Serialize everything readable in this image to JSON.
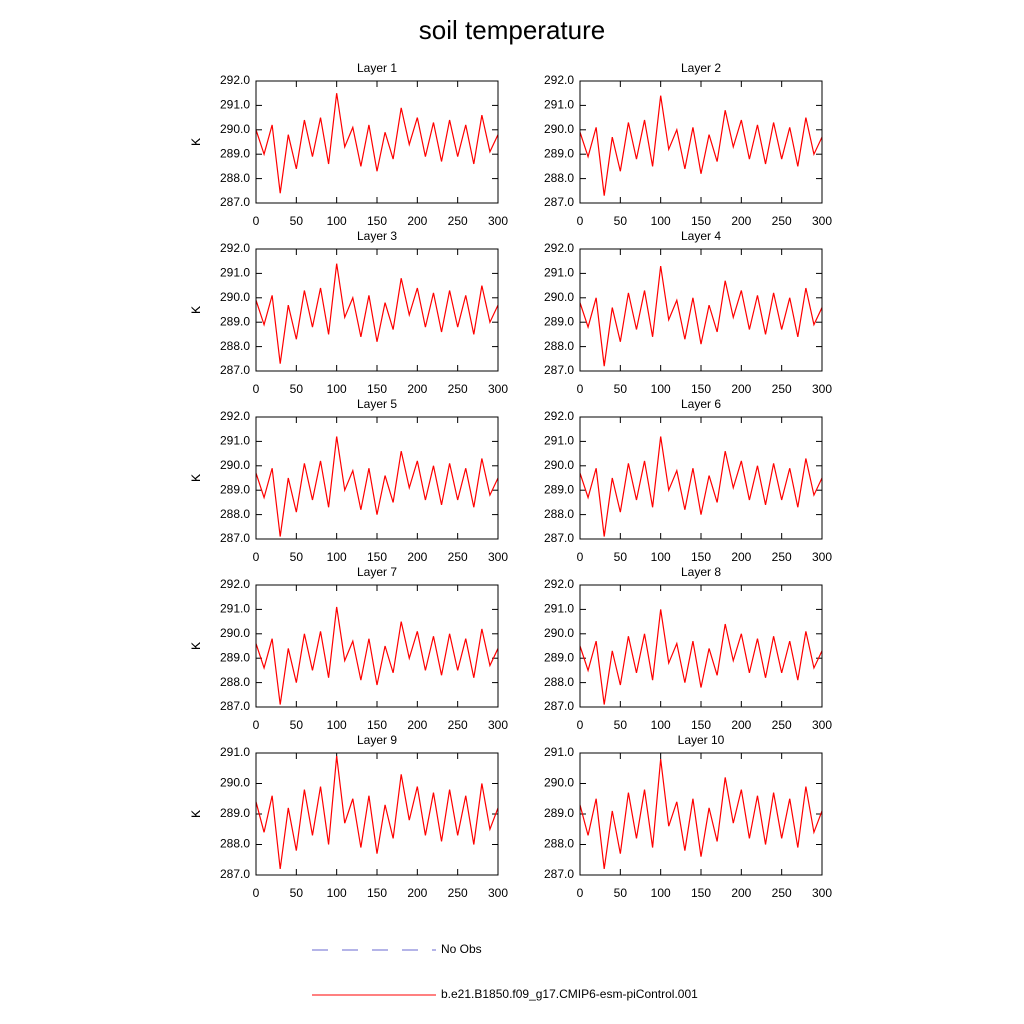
{
  "title": "soil temperature",
  "legend": [
    {
      "name": "No Obs",
      "color": "#6a6ad0",
      "style": "dashed"
    },
    {
      "name": "b.e21.B1850.f09_g17.CMIP6-esm-piControl.001",
      "color": "#ff0000",
      "style": "solid"
    }
  ],
  "chart_data": [
    {
      "type": "line",
      "title": "Layer 1",
      "ylabel": "K",
      "x": [
        0,
        10,
        20,
        30,
        40,
        50,
        60,
        70,
        80,
        90,
        100,
        110,
        120,
        130,
        140,
        150,
        160,
        170,
        180,
        190,
        200,
        210,
        220,
        230,
        240,
        250,
        260,
        270,
        280,
        290,
        300
      ],
      "series": [
        {
          "color": "#ff0000",
          "values": [
            290.0,
            289.0,
            290.2,
            287.4,
            289.8,
            288.4,
            290.4,
            288.9,
            290.5,
            288.6,
            291.5,
            289.3,
            290.1,
            288.5,
            290.2,
            288.3,
            289.9,
            288.8,
            290.9,
            289.4,
            290.5,
            288.9,
            290.3,
            288.7,
            290.4,
            288.9,
            290.2,
            288.6,
            290.6,
            289.1,
            289.8
          ]
        }
      ],
      "xlim": [
        0,
        300
      ],
      "xticks": [
        0,
        50,
        100,
        150,
        200,
        250,
        300
      ],
      "ylim": [
        287,
        292
      ],
      "yticks": [
        {
          "value": 287,
          "label": "287.0"
        },
        {
          "value": 288,
          "label": "288.0"
        },
        {
          "value": 289,
          "label": "289.0"
        },
        {
          "value": 290,
          "label": "290.0"
        },
        {
          "value": 291,
          "label": "291.0"
        },
        {
          "value": 292,
          "label": "292.0"
        }
      ]
    },
    {
      "type": "line",
      "title": "Layer 2",
      "ylabel": "K",
      "x": [
        0,
        10,
        20,
        30,
        40,
        50,
        60,
        70,
        80,
        90,
        100,
        110,
        120,
        130,
        140,
        150,
        160,
        170,
        180,
        190,
        200,
        210,
        220,
        230,
        240,
        250,
        260,
        270,
        280,
        290,
        300
      ],
      "series": [
        {
          "color": "#ff0000",
          "values": [
            289.9,
            288.9,
            290.1,
            287.3,
            289.7,
            288.3,
            290.3,
            288.8,
            290.4,
            288.5,
            291.4,
            289.2,
            290.0,
            288.4,
            290.1,
            288.2,
            289.8,
            288.7,
            290.8,
            289.3,
            290.4,
            288.8,
            290.2,
            288.6,
            290.3,
            288.8,
            290.1,
            288.5,
            290.5,
            289.0,
            289.7
          ]
        }
      ],
      "xlim": [
        0,
        300
      ],
      "xticks": [
        0,
        50,
        100,
        150,
        200,
        250,
        300
      ],
      "ylim": [
        287,
        292
      ],
      "yticks": [
        {
          "value": 287,
          "label": "287.0"
        },
        {
          "value": 288,
          "label": "288.0"
        },
        {
          "value": 289,
          "label": "289.0"
        },
        {
          "value": 290,
          "label": "290.0"
        },
        {
          "value": 291,
          "label": "291.0"
        },
        {
          "value": 292,
          "label": "292.0"
        }
      ]
    },
    {
      "type": "line",
      "title": "Layer 3",
      "ylabel": "K",
      "x": [
        0,
        10,
        20,
        30,
        40,
        50,
        60,
        70,
        80,
        90,
        100,
        110,
        120,
        130,
        140,
        150,
        160,
        170,
        180,
        190,
        200,
        210,
        220,
        230,
        240,
        250,
        260,
        270,
        280,
        290,
        300
      ],
      "series": [
        {
          "color": "#ff0000",
          "values": [
            289.9,
            288.9,
            290.1,
            287.3,
            289.7,
            288.3,
            290.3,
            288.8,
            290.4,
            288.5,
            291.4,
            289.2,
            290.0,
            288.4,
            290.1,
            288.2,
            289.8,
            288.7,
            290.8,
            289.3,
            290.4,
            288.8,
            290.2,
            288.6,
            290.3,
            288.8,
            290.1,
            288.5,
            290.5,
            289.0,
            289.7
          ]
        }
      ],
      "xlim": [
        0,
        300
      ],
      "xticks": [
        0,
        50,
        100,
        150,
        200,
        250,
        300
      ],
      "ylim": [
        287,
        292
      ],
      "yticks": [
        {
          "value": 287,
          "label": "287.0"
        },
        {
          "value": 288,
          "label": "288.0"
        },
        {
          "value": 289,
          "label": "289.0"
        },
        {
          "value": 290,
          "label": "290.0"
        },
        {
          "value": 291,
          "label": "291.0"
        },
        {
          "value": 292,
          "label": "292.0"
        }
      ]
    },
    {
      "type": "line",
      "title": "Layer 4",
      "ylabel": "K",
      "x": [
        0,
        10,
        20,
        30,
        40,
        50,
        60,
        70,
        80,
        90,
        100,
        110,
        120,
        130,
        140,
        150,
        160,
        170,
        180,
        190,
        200,
        210,
        220,
        230,
        240,
        250,
        260,
        270,
        280,
        290,
        300
      ],
      "series": [
        {
          "color": "#ff0000",
          "values": [
            289.8,
            288.8,
            290.0,
            287.2,
            289.6,
            288.2,
            290.2,
            288.7,
            290.3,
            288.4,
            291.3,
            289.1,
            289.9,
            288.3,
            290.0,
            288.1,
            289.7,
            288.6,
            290.7,
            289.2,
            290.3,
            288.7,
            290.1,
            288.5,
            290.2,
            288.7,
            290.0,
            288.4,
            290.4,
            288.9,
            289.6
          ]
        }
      ],
      "xlim": [
        0,
        300
      ],
      "xticks": [
        0,
        50,
        100,
        150,
        200,
        250,
        300
      ],
      "ylim": [
        287,
        292
      ],
      "yticks": [
        {
          "value": 287,
          "label": "287.0"
        },
        {
          "value": 288,
          "label": "288.0"
        },
        {
          "value": 289,
          "label": "289.0"
        },
        {
          "value": 290,
          "label": "290.0"
        },
        {
          "value": 291,
          "label": "291.0"
        },
        {
          "value": 292,
          "label": "292.0"
        }
      ]
    },
    {
      "type": "line",
      "title": "Layer 5",
      "ylabel": "K",
      "x": [
        0,
        10,
        20,
        30,
        40,
        50,
        60,
        70,
        80,
        90,
        100,
        110,
        120,
        130,
        140,
        150,
        160,
        170,
        180,
        190,
        200,
        210,
        220,
        230,
        240,
        250,
        260,
        270,
        280,
        290,
        300
      ],
      "series": [
        {
          "color": "#ff0000",
          "values": [
            289.7,
            288.7,
            289.9,
            287.1,
            289.5,
            288.1,
            290.1,
            288.6,
            290.2,
            288.3,
            291.2,
            289.0,
            289.8,
            288.2,
            289.9,
            288.0,
            289.6,
            288.5,
            290.6,
            289.1,
            290.2,
            288.6,
            290.0,
            288.4,
            290.1,
            288.6,
            289.9,
            288.3,
            290.3,
            288.8,
            289.5
          ]
        }
      ],
      "xlim": [
        0,
        300
      ],
      "xticks": [
        0,
        50,
        100,
        150,
        200,
        250,
        300
      ],
      "ylim": [
        287,
        292
      ],
      "yticks": [
        {
          "value": 287,
          "label": "287.0"
        },
        {
          "value": 288,
          "label": "288.0"
        },
        {
          "value": 289,
          "label": "289.0"
        },
        {
          "value": 290,
          "label": "290.0"
        },
        {
          "value": 291,
          "label": "291.0"
        },
        {
          "value": 292,
          "label": "292.0"
        }
      ]
    },
    {
      "type": "line",
      "title": "Layer 6",
      "ylabel": "K",
      "x": [
        0,
        10,
        20,
        30,
        40,
        50,
        60,
        70,
        80,
        90,
        100,
        110,
        120,
        130,
        140,
        150,
        160,
        170,
        180,
        190,
        200,
        210,
        220,
        230,
        240,
        250,
        260,
        270,
        280,
        290,
        300
      ],
      "series": [
        {
          "color": "#ff0000",
          "values": [
            289.7,
            288.7,
            289.9,
            287.1,
            289.5,
            288.1,
            290.1,
            288.6,
            290.2,
            288.3,
            291.2,
            289.0,
            289.8,
            288.2,
            289.9,
            288.0,
            289.6,
            288.5,
            290.6,
            289.1,
            290.2,
            288.6,
            290.0,
            288.4,
            290.1,
            288.6,
            289.9,
            288.3,
            290.3,
            288.8,
            289.5
          ]
        }
      ],
      "xlim": [
        0,
        300
      ],
      "xticks": [
        0,
        50,
        100,
        150,
        200,
        250,
        300
      ],
      "ylim": [
        287,
        292
      ],
      "yticks": [
        {
          "value": 287,
          "label": "287.0"
        },
        {
          "value": 288,
          "label": "288.0"
        },
        {
          "value": 289,
          "label": "289.0"
        },
        {
          "value": 290,
          "label": "290.0"
        },
        {
          "value": 291,
          "label": "291.0"
        },
        {
          "value": 292,
          "label": "292.0"
        }
      ]
    },
    {
      "type": "line",
      "title": "Layer 7",
      "ylabel": "K",
      "x": [
        0,
        10,
        20,
        30,
        40,
        50,
        60,
        70,
        80,
        90,
        100,
        110,
        120,
        130,
        140,
        150,
        160,
        170,
        180,
        190,
        200,
        210,
        220,
        230,
        240,
        250,
        260,
        270,
        280,
        290,
        300
      ],
      "series": [
        {
          "color": "#ff0000",
          "values": [
            289.6,
            288.6,
            289.8,
            287.1,
            289.4,
            288.0,
            290.0,
            288.5,
            290.1,
            288.2,
            291.1,
            288.9,
            289.7,
            288.1,
            289.8,
            287.9,
            289.5,
            288.4,
            290.5,
            289.0,
            290.1,
            288.5,
            289.9,
            288.3,
            290.0,
            288.5,
            289.8,
            288.2,
            290.2,
            288.7,
            289.4
          ]
        }
      ],
      "xlim": [
        0,
        300
      ],
      "xticks": [
        0,
        50,
        100,
        150,
        200,
        250,
        300
      ],
      "ylim": [
        287,
        292
      ],
      "yticks": [
        {
          "value": 287,
          "label": "287.0"
        },
        {
          "value": 288,
          "label": "288.0"
        },
        {
          "value": 289,
          "label": "289.0"
        },
        {
          "value": 290,
          "label": "290.0"
        },
        {
          "value": 291,
          "label": "291.0"
        },
        {
          "value": 292,
          "label": "292.0"
        }
      ]
    },
    {
      "type": "line",
      "title": "Layer 8",
      "ylabel": "K",
      "x": [
        0,
        10,
        20,
        30,
        40,
        50,
        60,
        70,
        80,
        90,
        100,
        110,
        120,
        130,
        140,
        150,
        160,
        170,
        180,
        190,
        200,
        210,
        220,
        230,
        240,
        250,
        260,
        270,
        280,
        290,
        300
      ],
      "series": [
        {
          "color": "#ff0000",
          "values": [
            289.5,
            288.5,
            289.7,
            287.1,
            289.3,
            287.9,
            289.9,
            288.4,
            290.0,
            288.1,
            291.0,
            288.8,
            289.6,
            288.0,
            289.7,
            287.8,
            289.4,
            288.3,
            290.4,
            288.9,
            290.0,
            288.4,
            289.8,
            288.2,
            289.9,
            288.4,
            289.7,
            288.1,
            290.1,
            288.6,
            289.3
          ]
        }
      ],
      "xlim": [
        0,
        300
      ],
      "xticks": [
        0,
        50,
        100,
        150,
        200,
        250,
        300
      ],
      "ylim": [
        287,
        292
      ],
      "yticks": [
        {
          "value": 287,
          "label": "287.0"
        },
        {
          "value": 288,
          "label": "288.0"
        },
        {
          "value": 289,
          "label": "289.0"
        },
        {
          "value": 290,
          "label": "290.0"
        },
        {
          "value": 291,
          "label": "291.0"
        },
        {
          "value": 292,
          "label": "292.0"
        }
      ]
    },
    {
      "type": "line",
      "title": "Layer 9",
      "ylabel": "K",
      "x": [
        0,
        10,
        20,
        30,
        40,
        50,
        60,
        70,
        80,
        90,
        100,
        110,
        120,
        130,
        140,
        150,
        160,
        170,
        180,
        190,
        200,
        210,
        220,
        230,
        240,
        250,
        260,
        270,
        280,
        290,
        300
      ],
      "series": [
        {
          "color": "#ff0000",
          "values": [
            289.4,
            288.4,
            289.6,
            287.2,
            289.2,
            287.8,
            289.8,
            288.3,
            289.9,
            288.0,
            290.9,
            288.7,
            289.5,
            287.9,
            289.6,
            287.7,
            289.3,
            288.2,
            290.3,
            288.8,
            289.9,
            288.3,
            289.7,
            288.1,
            289.8,
            288.3,
            289.6,
            288.0,
            290.0,
            288.5,
            289.2
          ]
        }
      ],
      "xlim": [
        0,
        300
      ],
      "xticks": [
        0,
        50,
        100,
        150,
        200,
        250,
        300
      ],
      "ylim": [
        287,
        291
      ],
      "yticks": [
        {
          "value": 287,
          "label": "287.0"
        },
        {
          "value": 288,
          "label": "288.0"
        },
        {
          "value": 289,
          "label": "289.0"
        },
        {
          "value": 290,
          "label": "290.0"
        },
        {
          "value": 291,
          "label": "291.0"
        }
      ]
    },
    {
      "type": "line",
      "title": "Layer 10",
      "ylabel": "K",
      "x": [
        0,
        10,
        20,
        30,
        40,
        50,
        60,
        70,
        80,
        90,
        100,
        110,
        120,
        130,
        140,
        150,
        160,
        170,
        180,
        190,
        200,
        210,
        220,
        230,
        240,
        250,
        260,
        270,
        280,
        290,
        300
      ],
      "series": [
        {
          "color": "#ff0000",
          "values": [
            289.3,
            288.3,
            289.5,
            287.2,
            289.1,
            287.7,
            289.7,
            288.2,
            289.8,
            287.9,
            290.8,
            288.6,
            289.4,
            287.8,
            289.5,
            287.6,
            289.2,
            288.1,
            290.2,
            288.7,
            289.8,
            288.2,
            289.6,
            288.0,
            289.7,
            288.2,
            289.5,
            287.9,
            289.9,
            288.4,
            289.1
          ]
        }
      ],
      "xlim": [
        0,
        300
      ],
      "xticks": [
        0,
        50,
        100,
        150,
        200,
        250,
        300
      ],
      "ylim": [
        287,
        291
      ],
      "yticks": [
        {
          "value": 287,
          "label": "287.0"
        },
        {
          "value": 288,
          "label": "288.0"
        },
        {
          "value": 289,
          "label": "289.0"
        },
        {
          "value": 290,
          "label": "290.0"
        },
        {
          "value": 291,
          "label": "291.0"
        }
      ]
    }
  ]
}
